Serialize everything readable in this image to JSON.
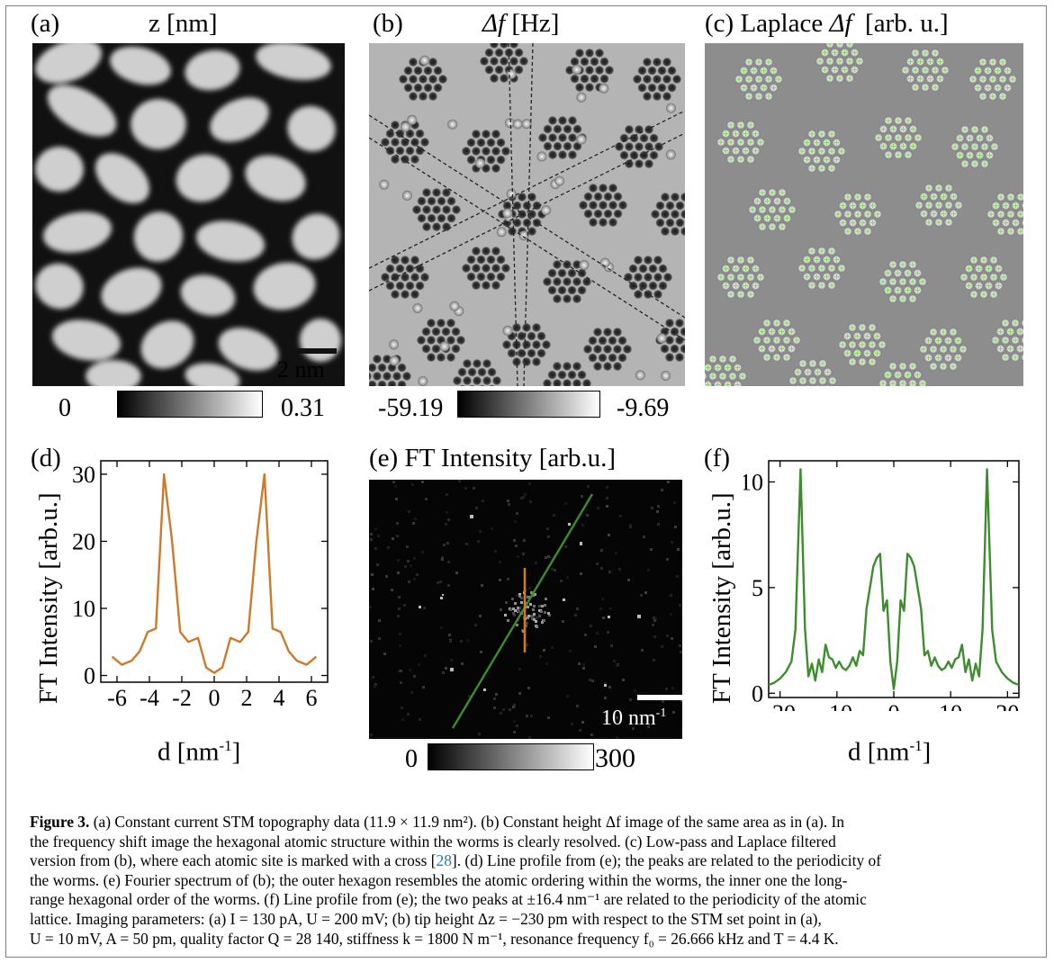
{
  "panels": {
    "a": {
      "letter": "(a)",
      "title": "z [nm]",
      "scalebar": "2 nm",
      "cbar_min": "0",
      "cbar_max": "0.31"
    },
    "b": {
      "letter": "(b)",
      "title_sym": "Δf",
      "title_unit": "[Hz]",
      "cbar_min": "-59.19",
      "cbar_max": "-9.69"
    },
    "c": {
      "letter": "(c)",
      "title_pre": "Laplace",
      "title_sym": "Δf",
      "title_unit": "[arb. u.]"
    },
    "d": {
      "letter": "(d)",
      "ylabel": "FT Intensity [arb.u.]",
      "xlabel": "d [nm",
      "xlabel_sup": "-1",
      "xlabel_end": "]",
      "xticks": [
        "-6",
        "-4",
        "-2",
        "0",
        "2",
        "4",
        "6"
      ],
      "yticks": [
        "0",
        "10",
        "20",
        "30"
      ]
    },
    "e": {
      "letter": "(e)",
      "title": "FT Intensity [arb.u.]",
      "scalebar": "10 nm",
      "scalebar_sup": "-1",
      "cbar_min": "0",
      "cbar_max": "300"
    },
    "f": {
      "letter": "(f)",
      "ylabel": "FT Intensity [arb.u.]",
      "xlabel": "d [nm",
      "xlabel_sup": "-1",
      "xlabel_end": "]",
      "xticks": [
        "-20",
        "-10",
        "0",
        "10",
        "20"
      ],
      "yticks": [
        "0",
        "5",
        "10"
      ]
    }
  },
  "colors": {
    "profile_d": "#cc7a29",
    "profile_f": "#3d8c2e",
    "cross": "#7ed957",
    "citation": "#2a7bb5"
  },
  "chart_data": [
    {
      "type": "line",
      "panel": "(d)",
      "title": "",
      "xlabel": "d [nm-1]",
      "ylabel": "FT Intensity [arb.u.]",
      "xlim": [
        -7,
        7
      ],
      "ylim": [
        -1,
        32
      ],
      "series": [
        {
          "x": [
            -6.3,
            -5.7,
            -5.1,
            -4.6,
            -4.1,
            -3.6,
            -3.1,
            -2.6,
            -2.1,
            -1.6,
            -1.0,
            -0.5,
            0,
            0.5,
            1.0,
            1.6,
            2.1,
            2.6,
            3.1,
            3.6,
            4.1,
            4.6,
            5.1,
            5.7,
            6.3
          ],
          "y": [
            2.8,
            1.6,
            2.2,
            3.6,
            6.5,
            7.0,
            30,
            20,
            6.5,
            5.0,
            5.6,
            1.2,
            0.4,
            1.2,
            5.6,
            5.0,
            6.5,
            20,
            30,
            7.0,
            6.5,
            3.6,
            2.2,
            1.6,
            2.8
          ]
        }
      ]
    },
    {
      "type": "line",
      "panel": "(f)",
      "title": "",
      "xlabel": "d [nm-1]",
      "ylabel": "FT Intensity [arb.u.]",
      "xlim": [
        -22,
        22
      ],
      "ylim": [
        -0.2,
        11
      ],
      "series": [
        {
          "x": [
            -22,
            -21,
            -20,
            -19,
            -18,
            -17.3,
            -16.4,
            -15.6,
            -15,
            -14.4,
            -13.8,
            -13.2,
            -12.6,
            -12,
            -11.4,
            -10.8,
            -10.2,
            -9.6,
            -9,
            -8.4,
            -7.8,
            -7.2,
            -6.6,
            -6,
            -5.4,
            -4.8,
            -4.2,
            -3.6,
            -3,
            -2.4,
            -1.8,
            -1.2,
            -0.6,
            0,
            0.6,
            1.2,
            1.8,
            2.4,
            3,
            3.6,
            4.2,
            4.8,
            5.4,
            6,
            6.6,
            7.2,
            7.8,
            8.4,
            9,
            9.6,
            10.2,
            10.8,
            11.4,
            12,
            12.6,
            13.2,
            13.8,
            14.4,
            15,
            15.6,
            16.4,
            17.3,
            18,
            19,
            20,
            21,
            22
          ],
          "y": [
            0.4,
            0.5,
            0.7,
            1.0,
            1.5,
            3.0,
            10.6,
            3.0,
            0.8,
            1.4,
            0.6,
            1.6,
            1.0,
            2.3,
            1.7,
            1.6,
            1.2,
            1.5,
            1.2,
            1.1,
            1.3,
            1.7,
            1.3,
            2.0,
            1.8,
            4.0,
            5.0,
            6.0,
            6.4,
            6.6,
            3.9,
            4.4,
            1.5,
            0.2,
            1.5,
            4.4,
            3.9,
            6.6,
            6.4,
            6.0,
            5.0,
            4.0,
            1.8,
            2.0,
            1.3,
            1.7,
            1.3,
            1.1,
            1.2,
            1.5,
            1.2,
            1.6,
            1.7,
            2.3,
            1.0,
            1.6,
            0.6,
            1.4,
            0.8,
            3.0,
            10.6,
            3.0,
            1.5,
            1.0,
            0.7,
            0.5,
            0.4
          ]
        }
      ]
    }
  ],
  "caption": {
    "label": "Figure 3.",
    "lines": [
      " (a) Constant current STM topography data (11.9 × 11.9 nm²). (b) Constant height Δf image of the same area as in (a). In",
      "the frequency shift image the hexagonal atomic structure within the worms is clearly resolved. (c) Low-pass and Laplace filtered",
      "version from (b), where each atomic site is marked with a cross [",
      "]. (d) Line profile from (e); the peaks are related to the periodicity of",
      "the worms. (e) Fourier spectrum of (b); the outer hexagon resembles the atomic ordering within the worms, the inner one the long-",
      "range hexagonal order of the worms. (f) Line profile from (e); the two peaks at ±16.4 nm⁻¹ are related to the periodicity of the atomic",
      "lattice. Imaging parameters: (a) I = 130 pA, U = 200 mV; (b) tip height Δz = −230 pm with respect to the STM set point in (a),",
      "U = 10 mV, A = 50 pm, quality factor Q = 28 140, stiffness k = 1800 N m⁻¹, resonance frequency f₀ = 26.666 kHz and T = 4.4 K."
    ],
    "citation": "28"
  }
}
